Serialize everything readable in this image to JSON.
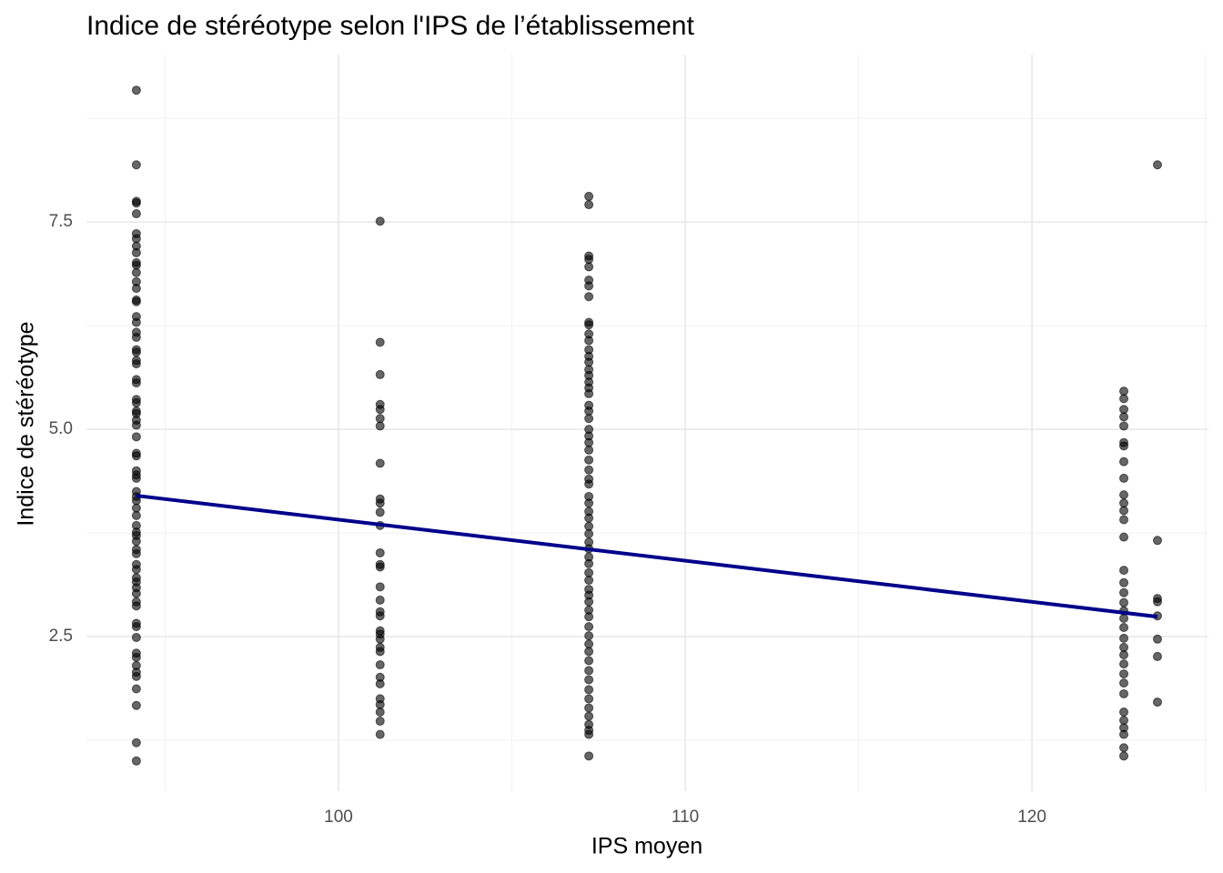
{
  "chart_data": {
    "type": "scatter",
    "title": "Indice de stéréotype selon l'IPS de l’établissement",
    "xlabel": "IPS moyen",
    "ylabel": "Indice de stéréotype",
    "xlim": [
      92.73,
      125.09
    ],
    "ylim": [
      0.636,
      9.52
    ],
    "xticks": [
      100,
      110,
      120
    ],
    "yticks": [
      2.5,
      {
        "value": 5,
        "label": "5.0"
      },
      7.5
    ],
    "x_minor_ticks": [
      95,
      105,
      115,
      125
    ],
    "y_minor_ticks": [
      1.25,
      3.75,
      6.25,
      8.75
    ],
    "grid": true,
    "color": "#000000",
    "point_opacity": 0.6,
    "x": [
      94.17,
      94.17,
      94.17,
      94.17,
      94.17,
      94.17,
      94.17,
      94.17,
      94.17,
      94.17,
      94.17,
      94.17,
      94.17,
      94.17,
      94.17,
      94.17,
      94.17,
      94.17,
      94.17,
      94.17,
      94.17,
      94.17,
      94.17,
      94.17,
      94.17,
      94.17,
      94.17,
      94.17,
      94.17,
      94.17,
      94.17,
      94.17,
      94.17,
      94.17,
      94.17,
      94.17,
      94.17,
      94.17,
      94.17,
      94.17,
      94.17,
      94.17,
      94.17,
      94.17,
      94.17,
      94.17,
      94.17,
      94.17,
      94.17,
      94.17,
      94.17,
      94.17,
      94.17,
      94.17,
      94.17,
      94.17,
      94.17,
      94.17,
      94.17,
      94.17,
      94.17,
      94.17,
      94.17,
      94.17,
      94.17,
      94.17,
      94.17,
      94.17,
      94.17,
      101.2,
      101.2,
      101.2,
      101.2,
      101.2,
      101.2,
      101.2,
      101.2,
      101.2,
      101.2,
      101.2,
      101.2,
      101.2,
      101.2,
      101.2,
      101.2,
      101.2,
      101.2,
      101.2,
      101.2,
      101.2,
      101.2,
      101.2,
      101.2,
      101.2,
      101.2,
      101.2,
      101.2,
      101.2,
      101.2,
      101.2,
      101.2,
      107.22,
      107.22,
      107.22,
      107.22,
      107.22,
      107.22,
      107.22,
      107.22,
      107.22,
      107.22,
      107.22,
      107.22,
      107.22,
      107.22,
      107.22,
      107.22,
      107.22,
      107.22,
      107.22,
      107.22,
      107.22,
      107.22,
      107.22,
      107.22,
      107.22,
      107.22,
      107.22,
      107.22,
      107.22,
      107.22,
      107.22,
      107.22,
      107.22,
      107.22,
      107.22,
      107.22,
      107.22,
      107.22,
      107.22,
      107.22,
      107.22,
      107.22,
      107.22,
      107.22,
      107.22,
      107.22,
      107.22,
      107.22,
      107.22,
      107.22,
      107.22,
      107.22,
      107.22,
      107.22,
      107.22,
      107.22,
      107.22,
      107.22,
      107.22,
      107.22,
      107.22,
      107.22,
      107.22,
      122.65,
      122.65,
      122.65,
      122.65,
      122.65,
      122.65,
      122.65,
      122.65,
      122.65,
      122.65,
      122.65,
      122.65,
      122.65,
      122.65,
      122.65,
      122.65,
      122.65,
      122.65,
      122.65,
      122.65,
      122.65,
      122.65,
      122.65,
      122.65,
      122.65,
      122.65,
      122.65,
      122.65,
      122.65,
      122.65,
      122.65,
      122.65,
      122.65,
      122.65,
      123.62,
      123.62,
      123.62,
      123.62,
      123.62,
      123.62,
      123.62,
      123.62
    ],
    "values": [
      9.09,
      8.19,
      7.75,
      7.73,
      7.6,
      7.36,
      7.3,
      7.21,
      7.13,
      7.01,
      6.98,
      6.89,
      6.78,
      6.7,
      6.56,
      6.54,
      6.36,
      6.29,
      6.17,
      6.11,
      5.96,
      5.93,
      5.83,
      5.79,
      5.6,
      5.56,
      5.36,
      5.32,
      5.22,
      5.19,
      5.11,
      5.05,
      4.91,
      4.71,
      4.68,
      4.5,
      4.45,
      4.41,
      4.25,
      4.19,
      4.14,
      4.05,
      3.96,
      3.84,
      3.76,
      3.72,
      3.65,
      3.55,
      3.5,
      3.37,
      3.31,
      3.21,
      3.16,
      3.09,
      3.02,
      2.92,
      2.87,
      2.66,
      2.62,
      2.49,
      2.3,
      2.25,
      2.15,
      2.07,
      2.02,
      1.87,
      1.67,
      1.22,
      1.0,
      7.51,
      6.05,
      5.66,
      5.3,
      5.24,
      5.13,
      5.04,
      4.59,
      4.16,
      4.11,
      4.0,
      3.84,
      3.51,
      3.37,
      3.34,
      3.1,
      2.94,
      2.8,
      2.75,
      2.57,
      2.53,
      2.47,
      2.37,
      2.32,
      2.16,
      2.01,
      1.93,
      1.75,
      1.68,
      1.59,
      1.48,
      1.32,
      7.81,
      7.71,
      7.09,
      7.05,
      6.96,
      6.8,
      6.73,
      6.6,
      6.29,
      6.26,
      6.15,
      6.07,
      5.96,
      5.88,
      5.81,
      5.72,
      5.65,
      5.57,
      5.5,
      5.43,
      5.29,
      5.22,
      5.13,
      5.0,
      4.92,
      4.84,
      4.75,
      4.63,
      4.51,
      4.4,
      4.34,
      4.19,
      4.11,
      4.01,
      3.93,
      3.83,
      3.74,
      3.64,
      3.56,
      3.46,
      3.38,
      3.27,
      3.18,
      3.07,
      3.0,
      2.92,
      2.82,
      2.74,
      2.62,
      2.51,
      2.41,
      2.32,
      2.21,
      2.09,
      1.98,
      1.86,
      1.75,
      1.64,
      1.54,
      1.44,
      1.37,
      1.32,
      1.06,
      5.46,
      5.37,
      5.24,
      5.15,
      5.04,
      4.84,
      4.8,
      4.61,
      4.41,
      4.21,
      4.11,
      4.02,
      3.91,
      3.7,
      3.3,
      3.15,
      3.03,
      2.91,
      2.81,
      2.72,
      2.61,
      2.48,
      2.37,
      2.28,
      2.17,
      2.05,
      1.94,
      1.81,
      1.59,
      1.49,
      1.4,
      1.32,
      1.16,
      1.06,
      8.19,
      3.66,
      2.96,
      2.92,
      2.75,
      2.47,
      2.26,
      1.71
    ],
    "fit_line": {
      "x": [
        94.17,
        123.62
      ],
      "values": [
        4.2,
        2.74
      ],
      "color": "#00008b"
    }
  }
}
